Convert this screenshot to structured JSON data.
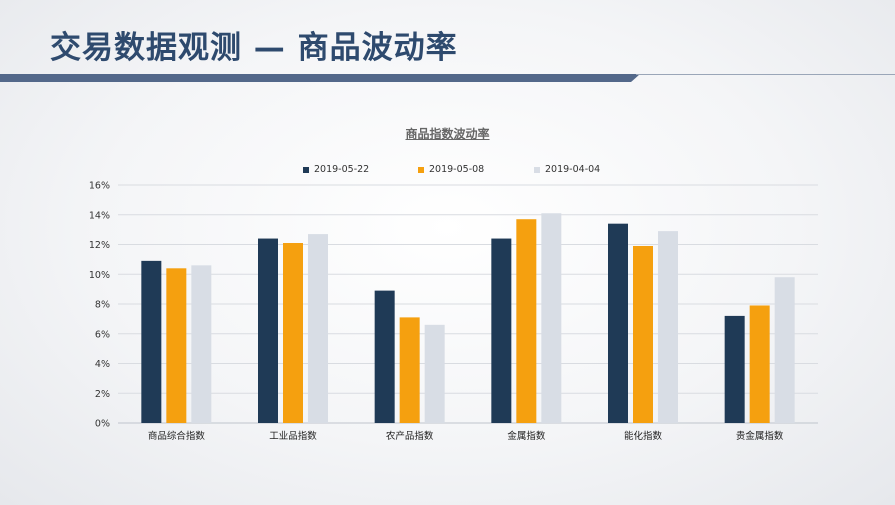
{
  "page": {
    "title": "交易数据观测 — 商品波动率"
  },
  "chart_data": {
    "type": "bar",
    "title": "商品指数波动率",
    "xlabel": "",
    "ylabel": "",
    "categories": [
      "商品综合指数",
      "工业品指数",
      "农产品指数",
      "金属指数",
      "能化指数",
      "贵金属指数"
    ],
    "series": [
      {
        "name": "2019-05-22",
        "color": "#1f3a56",
        "values": [
          10.9,
          12.4,
          8.9,
          12.4,
          13.4,
          7.2
        ]
      },
      {
        "name": "2019-05-08",
        "color": "#f5a00f",
        "values": [
          10.4,
          12.1,
          7.1,
          13.7,
          11.9,
          7.9
        ]
      },
      {
        "name": "2019-04-04",
        "color": "#d8dde5",
        "values": [
          10.6,
          12.7,
          6.6,
          14.1,
          12.9,
          9.8
        ]
      }
    ],
    "ylim": [
      0,
      16
    ],
    "yticks": [
      "0%",
      "2%",
      "4%",
      "6%",
      "8%",
      "10%",
      "12%",
      "14%",
      "16%"
    ],
    "grid": true,
    "legend_position": "top"
  }
}
